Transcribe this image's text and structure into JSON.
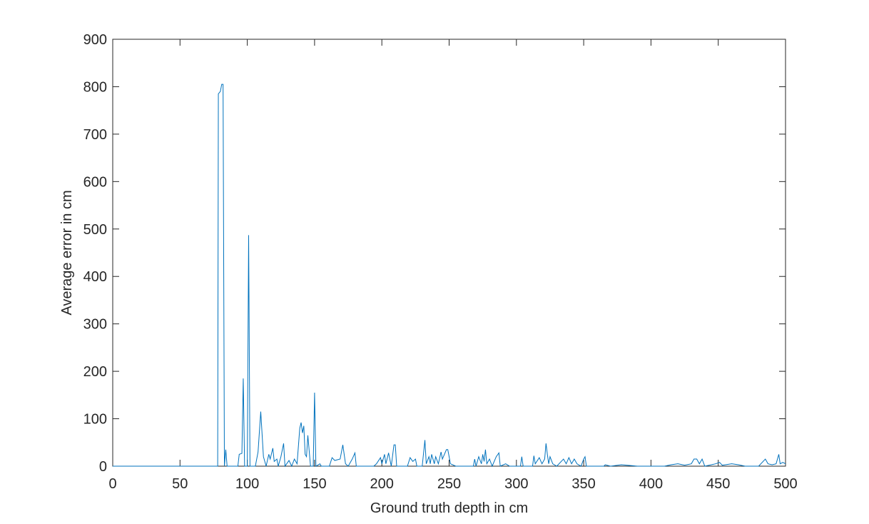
{
  "chart_data": {
    "type": "line",
    "xlabel": "Ground truth depth in cm",
    "ylabel": "Average error in cm",
    "xlim": [
      0,
      500
    ],
    "ylim": [
      0,
      900
    ],
    "xticks": [
      0,
      50,
      100,
      150,
      200,
      250,
      300,
      350,
      400,
      450,
      500
    ],
    "yticks": [
      0,
      100,
      200,
      300,
      400,
      500,
      600,
      700,
      800,
      900
    ],
    "grid": false,
    "x": [
      0,
      78,
      78.5,
      80,
      81,
      82,
      83,
      84,
      85,
      93,
      94,
      96,
      97,
      98,
      100,
      101,
      102,
      106,
      108,
      110,
      112,
      114,
      116,
      117,
      119,
      120,
      122,
      123,
      125,
      127,
      128,
      131,
      133,
      135,
      137,
      139,
      140,
      141,
      142,
      143,
      144,
      145,
      147,
      149,
      150,
      151,
      154,
      155,
      161,
      163,
      165,
      169,
      171,
      173,
      175,
      178,
      180,
      181,
      194,
      196,
      199,
      200,
      202,
      203,
      205,
      207,
      209,
      210,
      211,
      219,
      221,
      223,
      225,
      226,
      230,
      232,
      233,
      235,
      236,
      237,
      239,
      240,
      242,
      244,
      245,
      248,
      249,
      251,
      255,
      268,
      269,
      270,
      272,
      274,
      275,
      276,
      277,
      278,
      280,
      282,
      285,
      287,
      288,
      292,
      295,
      303,
      304,
      305,
      312,
      313,
      314,
      317,
      319,
      321,
      322,
      323,
      324,
      325,
      327,
      330,
      335,
      337,
      339,
      341,
      343,
      345,
      348,
      350,
      351,
      352,
      365,
      366,
      370,
      378,
      390,
      400,
      410,
      415,
      420,
      425,
      430,
      432,
      434,
      436,
      438,
      440,
      448,
      451,
      453,
      460,
      465,
      470,
      480,
      485,
      487,
      490,
      493,
      495,
      496,
      498,
      500
    ],
    "series": [
      {
        "name": "Average error",
        "color": "#0072bd",
        "values": [
          0,
          0,
          785,
          790,
          805,
          805,
          0,
          35,
          0,
          0,
          25,
          27,
          185,
          0,
          0,
          487,
          0,
          0,
          30,
          115,
          20,
          0,
          25,
          15,
          38,
          10,
          15,
          0,
          20,
          48,
          0,
          12,
          0,
          15,
          5,
          80,
          92,
          70,
          85,
          25,
          20,
          65,
          0,
          0,
          155,
          0,
          5,
          0,
          0,
          18,
          12,
          15,
          45,
          5,
          0,
          15,
          28,
          0,
          0,
          5,
          18,
          5,
          25,
          5,
          28,
          0,
          45,
          45,
          0,
          0,
          18,
          10,
          15,
          0,
          0,
          55,
          5,
          20,
          5,
          25,
          5,
          20,
          5,
          30,
          15,
          35,
          35,
          5,
          0,
          0,
          15,
          0,
          20,
          5,
          25,
          10,
          35,
          5,
          15,
          0,
          20,
          28,
          0,
          5,
          0,
          0,
          20,
          0,
          0,
          22,
          5,
          18,
          5,
          15,
          48,
          25,
          5,
          20,
          5,
          0,
          15,
          5,
          18,
          5,
          15,
          5,
          0,
          15,
          20,
          0,
          0,
          3,
          0,
          3,
          0,
          0,
          0,
          3,
          5,
          2,
          5,
          15,
          15,
          5,
          15,
          0,
          5,
          8,
          2,
          5,
          3,
          0,
          0,
          15,
          5,
          3,
          5,
          25,
          5,
          8,
          5
        ]
      }
    ]
  }
}
